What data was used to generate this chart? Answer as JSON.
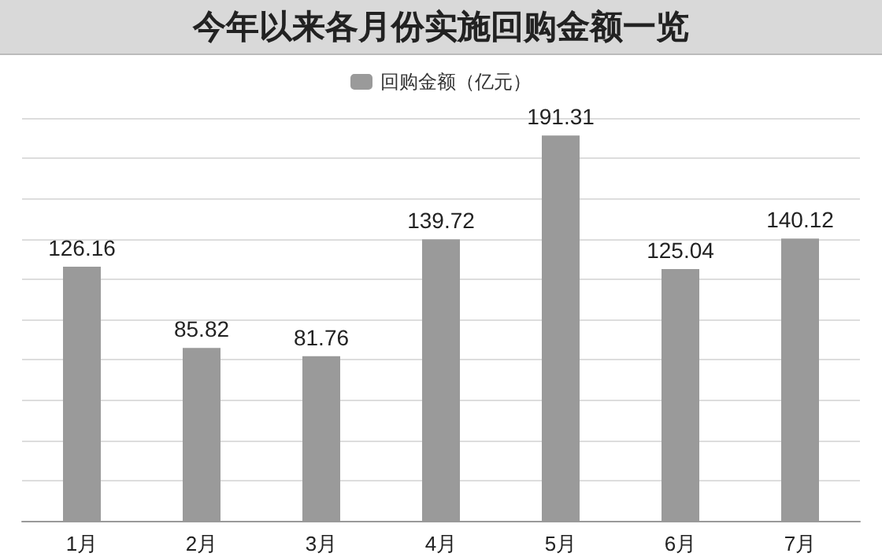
{
  "chart_data": {
    "type": "bar",
    "title": "今年以来各月份实施回购金额一览",
    "categories": [
      "1月",
      "2月",
      "3月",
      "4月",
      "5月",
      "6月",
      "7月"
    ],
    "series": [
      {
        "name": "回购金额（亿元）",
        "color": "#9a9a9a",
        "values": [
          126.16,
          85.82,
          81.76,
          139.72,
          191.31,
          125.04,
          140.12
        ]
      }
    ],
    "ylim": [
      0,
      200
    ],
    "yticks": [
      {
        "value": 0,
        "label": null
      },
      {
        "value": 20,
        "label": null
      },
      {
        "value": 40,
        "label": null
      },
      {
        "value": 60,
        "label": null
      },
      {
        "value": 80,
        "label": null
      },
      {
        "value": 100,
        "label": null
      },
      {
        "value": 120,
        "label": null
      },
      {
        "value": 140,
        "label": null
      },
      {
        "value": 160,
        "label": null
      },
      {
        "value": 180,
        "label": null
      },
      {
        "value": 200,
        "label": null
      }
    ],
    "tick_labels": "x",
    "grid": "y",
    "legend": "top",
    "data_labels": true
  }
}
